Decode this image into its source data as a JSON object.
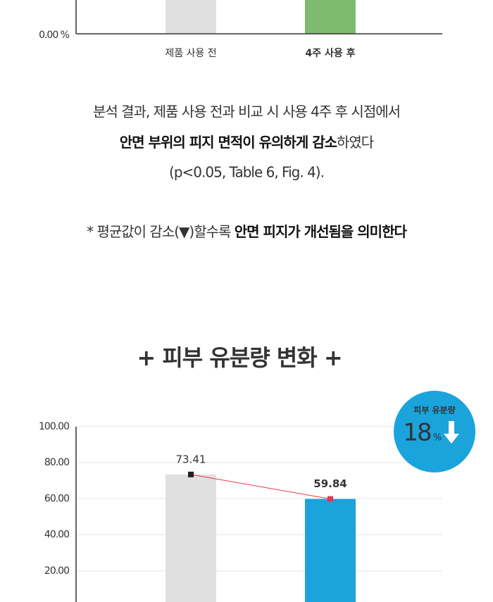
{
  "chart_data": [
    {
      "type": "bar",
      "categories": [
        "제품 사용 전",
        "4주 사용 후"
      ],
      "category_colors": [
        "#333333",
        "#6cb35e"
      ],
      "colors": [
        "#e0e0e0",
        "#7dbb6f"
      ],
      "yticks": [
        {
          "value": 0,
          "label": "0.00 %"
        }
      ]
    },
    {
      "type": "bar",
      "title": "+ 피부 유분량 변화 +",
      "values": [
        73.41,
        59.84
      ],
      "colors": [
        "#e0e0e0",
        "#1ba3dc"
      ],
      "label_colors": [
        "#333333",
        "#e8384f"
      ],
      "line_color": "#e8384f",
      "marker_colors": [
        "#222222",
        "#e8384f"
      ],
      "ylim": [
        0,
        100
      ],
      "yticks": [
        {
          "value": 20,
          "label": "20.00"
        },
        {
          "value": 40,
          "label": "40.00"
        },
        {
          "value": 60,
          "label": "60.00"
        },
        {
          "value": 80,
          "label": "80.00"
        },
        {
          "value": 100,
          "label": "100.00"
        }
      ],
      "grid": true,
      "badge": {
        "label": "피부 유분량",
        "value": 18,
        "unit": "%",
        "color": "#1ba3dc"
      }
    }
  ],
  "text": {
    "line1": "분석 결과, 제품 사용 전과 비교 시 사용 4주 후 시점에서",
    "line2_bold": "안면 부위의 피지 면적이 유의하게 감소",
    "line2_rest": "하였다",
    "line3": "(p<0.05, Table 6, Fig. 4).",
    "note": "* 평균값이 감소(▼)할수록 ",
    "note_bold": "안면 피지가 개선됨을 의미한다"
  }
}
